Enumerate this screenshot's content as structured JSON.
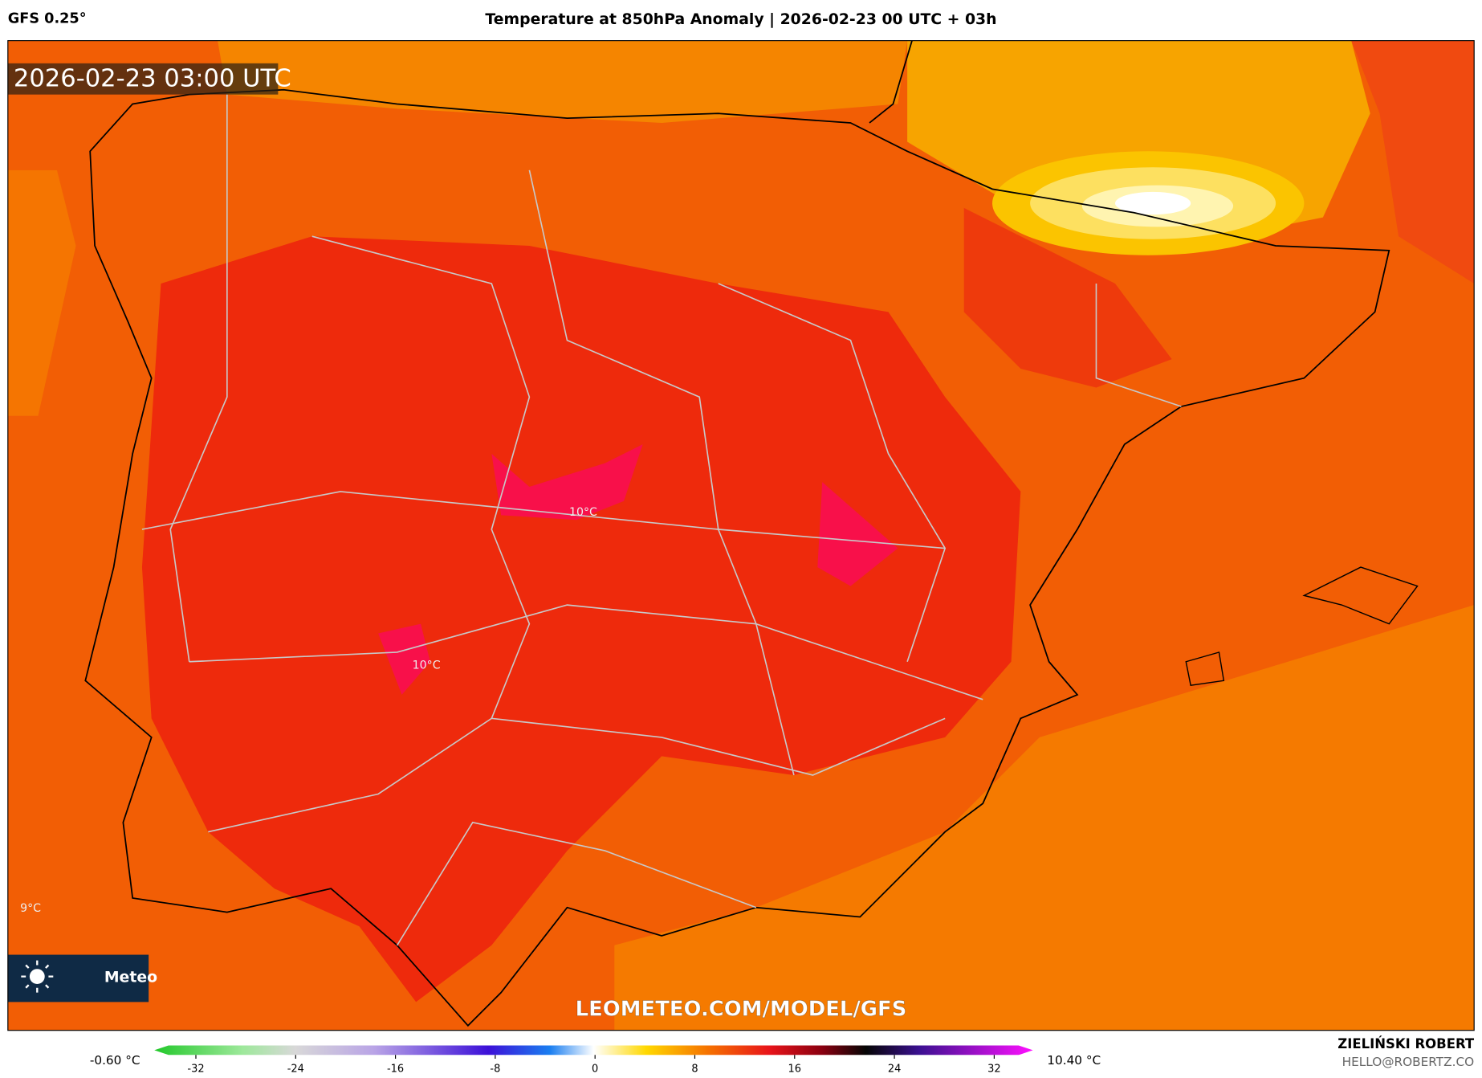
{
  "header": {
    "model": "GFS 0.25°",
    "title": "Temperature at 850hPa Anomaly | 2026-02-23 00 UTC + 03h"
  },
  "map": {
    "timestamp": "2026-02-23 03:00 UTC",
    "contour_labels": [
      "10°C",
      "10°C",
      "9°C"
    ],
    "watermark": "LEOMETEO.COM/MODEL/GFS",
    "logo": "Meteo"
  },
  "colorbar": {
    "min_label": "-0.60 °C",
    "max_label": "10.40 °C",
    "ticks": [
      -32,
      -24,
      -16,
      -8,
      0,
      8,
      16,
      24,
      32
    ]
  },
  "credits": {
    "author": "ZIELIŃSKI ROBERT",
    "contact": "HELLO@ROBERTZ.CO"
  }
}
